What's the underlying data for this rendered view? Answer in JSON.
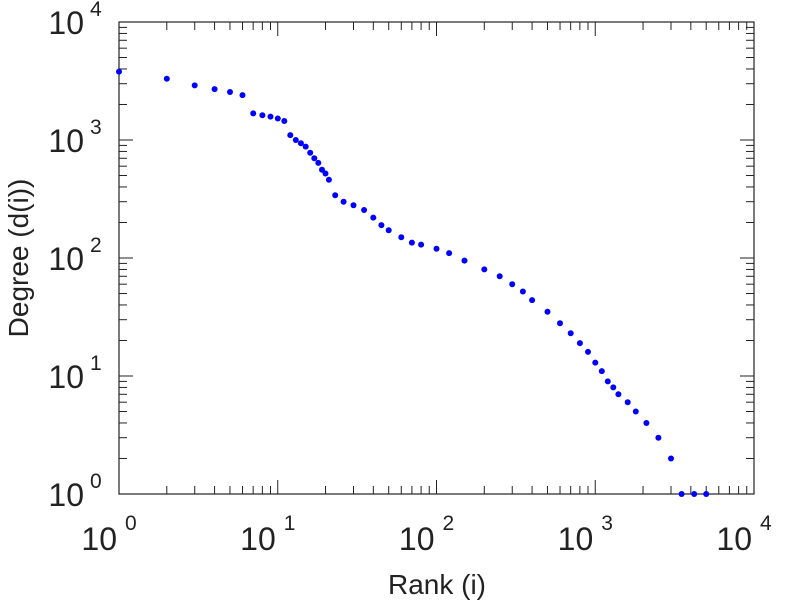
{
  "chart_data": {
    "type": "scatter",
    "title": "",
    "xlabel": "Rank (i)",
    "ylabel": "Degree (d(i))",
    "xscale": "log",
    "yscale": "log",
    "xlim": [
      1,
      10000
    ],
    "ylim": [
      1,
      10000
    ],
    "grid": false,
    "marker_color": "#0000ff",
    "x_ticks": [
      {
        "base": "10",
        "exp": "0"
      },
      {
        "base": "10",
        "exp": "1"
      },
      {
        "base": "10",
        "exp": "2"
      },
      {
        "base": "10",
        "exp": "3"
      },
      {
        "base": "10",
        "exp": "4"
      }
    ],
    "y_ticks": [
      {
        "base": "10",
        "exp": "0"
      },
      {
        "base": "10",
        "exp": "1"
      },
      {
        "base": "10",
        "exp": "2"
      },
      {
        "base": "10",
        "exp": "3"
      },
      {
        "base": "10",
        "exp": "4"
      }
    ],
    "series": [
      {
        "points": [
          [
            1,
            3800
          ],
          [
            2,
            3300
          ],
          [
            3,
            2900
          ],
          [
            4,
            2700
          ],
          [
            5,
            2550
          ],
          [
            6,
            2400
          ],
          [
            7,
            1680
          ],
          [
            8,
            1620
          ],
          [
            9,
            1580
          ],
          [
            10,
            1520
          ],
          [
            11,
            1450
          ],
          [
            12,
            1100
          ],
          [
            13,
            1000
          ],
          [
            14,
            940
          ],
          [
            15,
            880
          ],
          [
            16,
            780
          ],
          [
            17,
            700
          ],
          [
            18,
            640
          ],
          [
            19,
            560
          ],
          [
            20,
            520
          ],
          [
            21,
            460
          ],
          [
            23,
            340
          ],
          [
            26,
            300
          ],
          [
            30,
            280
          ],
          [
            35,
            255
          ],
          [
            40,
            220
          ],
          [
            45,
            190
          ],
          [
            50,
            172
          ],
          [
            60,
            150
          ],
          [
            70,
            135
          ],
          [
            80,
            130
          ],
          [
            100,
            120
          ],
          [
            120,
            110
          ],
          [
            150,
            95
          ],
          [
            200,
            80
          ],
          [
            250,
            70
          ],
          [
            300,
            60
          ],
          [
            350,
            52
          ],
          [
            400,
            44
          ],
          [
            500,
            35
          ],
          [
            600,
            28
          ],
          [
            700,
            23
          ],
          [
            800,
            19
          ],
          [
            900,
            16
          ],
          [
            1000,
            13
          ],
          [
            1100,
            11
          ],
          [
            1200,
            9
          ],
          [
            1300,
            8
          ],
          [
            1400,
            7
          ],
          [
            1600,
            6
          ],
          [
            1800,
            5
          ],
          [
            2100,
            4
          ],
          [
            2500,
            3
          ],
          [
            3000,
            2
          ],
          [
            3500,
            1
          ],
          [
            4200,
            1
          ],
          [
            5000,
            1
          ]
        ]
      }
    ]
  }
}
